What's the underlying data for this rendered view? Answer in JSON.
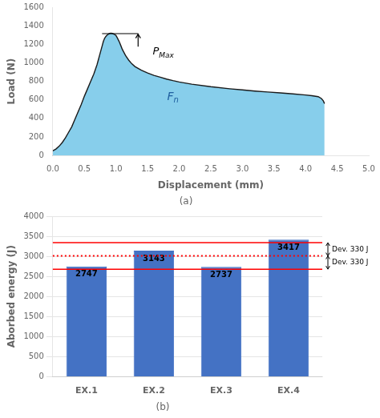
{
  "chart_data": [
    {
      "type": "area",
      "title": "(a)",
      "xlabel": "Displacement (mm)",
      "ylabel": "Load (N)",
      "x": [
        0.0,
        0.05,
        0.1,
        0.15,
        0.2,
        0.25,
        0.3,
        0.35,
        0.4,
        0.45,
        0.5,
        0.55,
        0.6,
        0.65,
        0.7,
        0.72,
        0.74,
        0.76,
        0.78,
        0.8,
        0.82,
        0.84,
        0.86,
        0.88,
        0.9,
        0.92,
        0.94,
        0.96,
        0.98,
        1.0,
        1.02,
        1.05,
        1.08,
        1.1,
        1.15,
        1.2,
        1.25,
        1.3,
        1.4,
        1.5,
        1.6,
        1.7,
        1.8,
        1.9,
        2.0,
        2.2,
        2.5,
        2.8,
        3.0,
        3.2,
        3.4,
        3.6,
        3.8,
        4.0,
        4.1,
        4.2,
        4.25,
        4.28,
        4.3
      ],
      "series": [
        {
          "color": "#1a1a1a",
          "values": [
            50,
            70,
            100,
            140,
            190,
            250,
            310,
            390,
            470,
            550,
            640,
            720,
            800,
            880,
            980,
            1030,
            1080,
            1130,
            1180,
            1230,
            1265,
            1285,
            1300,
            1310,
            1318,
            1320,
            1318,
            1312,
            1305,
            1295,
            1270,
            1230,
            1180,
            1145,
            1080,
            1030,
            990,
            960,
            920,
            890,
            865,
            845,
            825,
            808,
            793,
            770,
            742,
            720,
            708,
            695,
            685,
            675,
            665,
            653,
            645,
            635,
            615,
            590,
            560
          ]
        }
      ],
      "color": "#87CEEB",
      "xlim": [
        0,
        5
      ],
      "ylim": [
        0,
        1600
      ],
      "xticks": [
        {
          "value": 0,
          "label": "0.0"
        },
        0.5,
        {
          "value": 1,
          "label": "1.0"
        },
        1.5,
        {
          "value": 2,
          "label": "2.0"
        },
        2.5,
        {
          "value": 3,
          "label": "3.0"
        },
        3.5,
        {
          "value": 4,
          "label": "4.0"
        },
        4.5,
        {
          "value": 5,
          "label": "5.0"
        }
      ],
      "yticks": [
        0,
        200,
        400,
        600,
        800,
        1000,
        1200,
        1400,
        1600
      ],
      "grid": false,
      "annotations": [
        {
          "text": "Fn",
          "x": 1.9,
          "y": 630,
          "color": "#2060a0"
        },
        {
          "text": "PMax",
          "x": 1.58,
          "y": 1050,
          "color": "#000000",
          "arrow": {
            "x": 1.35,
            "y_start": 1175,
            "y_end": 1310
          },
          "line": {
            "y": 1315,
            "x1": 0.78,
            "x2": 1.35
          }
        }
      ]
    },
    {
      "type": "bar",
      "title": "(b)",
      "ylabel": "Aborbed energy (J)",
      "categories": [
        "EX.1",
        "EX.2",
        "EX.3",
        "EX.4"
      ],
      "values": [
        2747,
        3143,
        2737,
        3417
      ],
      "color": "#4472C4",
      "ylim": [
        0,
        4000
      ],
      "yticks": [
        0,
        500,
        1000,
        1500,
        2000,
        2500,
        3000,
        3500,
        4000
      ],
      "grid": true,
      "data_labels": true,
      "lines": [
        {
          "y": 3010,
          "color": "#FF0000",
          "line_style": "dotted"
        },
        {
          "y": 3340,
          "color": "#FF0000",
          "line_style": "solid"
        },
        {
          "y": 2680,
          "color": "#FF0000",
          "line_style": "solid"
        }
      ],
      "annotations": [
        {
          "text": "Dev. 330 J",
          "y_from": 3010,
          "y_to": 3340
        },
        {
          "text": "Dev. 330 J",
          "y_from": 2680,
          "y_to": 3010
        }
      ]
    }
  ]
}
